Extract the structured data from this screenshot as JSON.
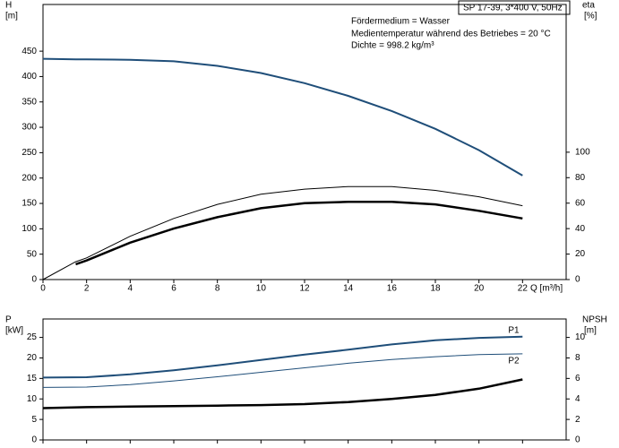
{
  "header": "SP 17-39, 3*400 V, 50Hz",
  "notes": [
    "Fördermedium = Wasser",
    "Medientemperatur während des Betriebes = 20 °C",
    "Dichte = 998.2 kg/m³"
  ],
  "chart_data": [
    {
      "type": "line",
      "ylabel": "H",
      "yunit": "[m]",
      "y2label": "eta",
      "y2unit": "[%]",
      "xlabel": "Q [m³/h]",
      "x": [
        0,
        1.5,
        2,
        4,
        6,
        8,
        10,
        12,
        14,
        16,
        18,
        20,
        22
      ],
      "xlim": [
        0,
        24
      ],
      "xticks": [
        0,
        2,
        4,
        6,
        8,
        10,
        12,
        14,
        16,
        18,
        20,
        22
      ],
      "ylim": [
        0,
        542
      ],
      "yticks": [
        0,
        50,
        100,
        150,
        200,
        250,
        300,
        350,
        400,
        450
      ],
      "y2lim": [
        0,
        216
      ],
      "y2ticks": [
        0,
        20,
        40,
        60,
        80,
        100
      ],
      "series": [
        {
          "color": "#1f4e79",
          "linewidth": 2,
          "values": [
            435,
            434,
            434,
            433,
            430,
            421,
            407,
            387,
            362,
            332,
            297,
            255,
            205
          ]
        },
        {
          "color": "#000000",
          "linewidth": 1,
          "axis": "y2",
          "values": [
            0,
            14,
            17,
            34,
            48,
            59,
            67,
            71,
            73,
            73,
            70,
            65,
            58
          ]
        },
        {
          "color": "#000000",
          "linewidth": 2.5,
          "axis": "y2",
          "values": [
            null,
            12,
            15,
            29,
            40,
            49,
            56,
            60,
            61,
            61,
            59,
            54,
            48
          ]
        }
      ]
    },
    {
      "type": "line",
      "ylabel": "P",
      "yunit": "[kW]",
      "y2label": "NPSH",
      "y2unit": "[m]",
      "x": [
        0,
        2,
        4,
        6,
        8,
        10,
        12,
        14,
        16,
        18,
        20,
        22
      ],
      "xlim": [
        0,
        24
      ],
      "xticks": [
        0,
        2,
        4,
        6,
        8,
        10,
        12,
        14,
        16,
        18,
        20,
        22
      ],
      "ylim": [
        0,
        29.5
      ],
      "yticks": [
        0,
        5,
        10,
        15,
        20,
        25
      ],
      "y2lim": [
        0,
        11.8
      ],
      "y2ticks": [
        0,
        2,
        4,
        6,
        8,
        10
      ],
      "series": [
        {
          "name": "P1",
          "color": "#1f4e79",
          "linewidth": 2,
          "values": [
            15.2,
            15.3,
            16,
            17,
            18.2,
            19.5,
            20.8,
            22,
            23.3,
            24.3,
            24.9,
            25.2
          ]
        },
        {
          "name": "P2",
          "color": "#1f4e79",
          "linewidth": 1,
          "values": [
            12.8,
            12.9,
            13.5,
            14.4,
            15.4,
            16.5,
            17.6,
            18.7,
            19.6,
            20.3,
            20.8,
            21
          ]
        },
        {
          "color": "#000000",
          "linewidth": 2.5,
          "axis": "y2",
          "values": [
            3.1,
            3.2,
            3.25,
            3.3,
            3.35,
            3.4,
            3.5,
            3.7,
            4,
            4.4,
            5,
            5.9
          ]
        }
      ]
    }
  ]
}
